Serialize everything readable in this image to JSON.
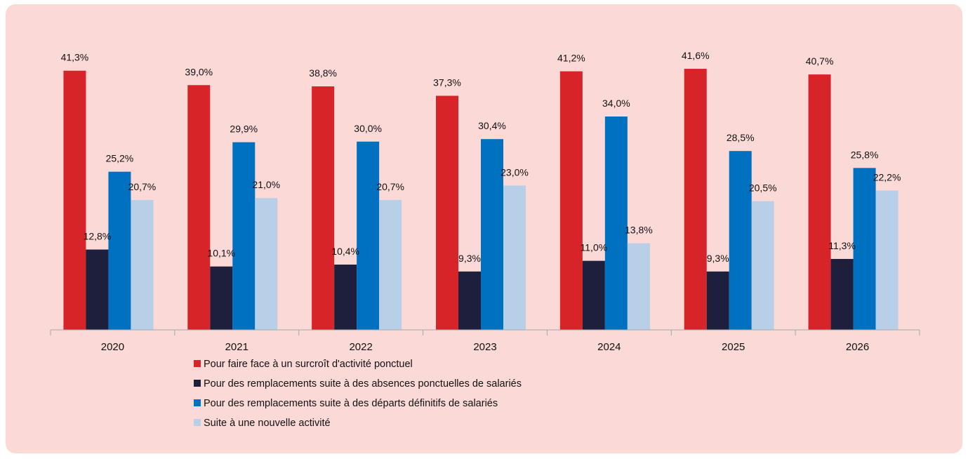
{
  "chart_data": {
    "type": "bar",
    "title": "",
    "xlabel": "",
    "ylabel": "",
    "ylim": [
      0,
      42.5
    ],
    "grid": false,
    "legend_position": "bottom",
    "categories": [
      "2020",
      "2021",
      "2022",
      "2023",
      "2024",
      "2025",
      "2026"
    ],
    "series": [
      {
        "name": "Pour faire face à un surcroît d'activité ponctuel",
        "color": "#d62428",
        "values": [
          41.3,
          39.0,
          38.8,
          37.3,
          41.2,
          41.6,
          40.7
        ],
        "labels": [
          "41,3%",
          "39,0%",
          "38,8%",
          "37,3%",
          "41,2%",
          "41,6%",
          "40,7%"
        ]
      },
      {
        "name": "Pour des remplacements suite à des absences ponctuelles de salariés",
        "color": "#1e1f3c",
        "values": [
          12.8,
          10.1,
          10.4,
          9.3,
          11.0,
          9.3,
          11.3
        ],
        "labels": [
          "12,8%",
          "10,1%",
          "10,4%",
          "9,3%",
          "11,0%",
          "9,3%",
          "11,3%"
        ]
      },
      {
        "name": "Pour des remplacements suite à des départs définitifs de salariés",
        "color": "#0070c0",
        "values": [
          25.2,
          29.9,
          30.0,
          30.4,
          34.0,
          28.5,
          25.8
        ],
        "labels": [
          "25,2%",
          "29,9%",
          "30,0%",
          "30,4%",
          "34,0%",
          "28,5%",
          "25,8%"
        ]
      },
      {
        "name": "Suite à une nouvelle activité",
        "color": "#b8cfe8",
        "values": [
          20.7,
          21.0,
          20.7,
          23.0,
          13.8,
          20.5,
          22.2
        ],
        "labels": [
          "20,7%",
          "21,0%",
          "20,7%",
          "23,0%",
          "13,8%",
          "20,5%",
          "22,2%"
        ]
      }
    ]
  }
}
